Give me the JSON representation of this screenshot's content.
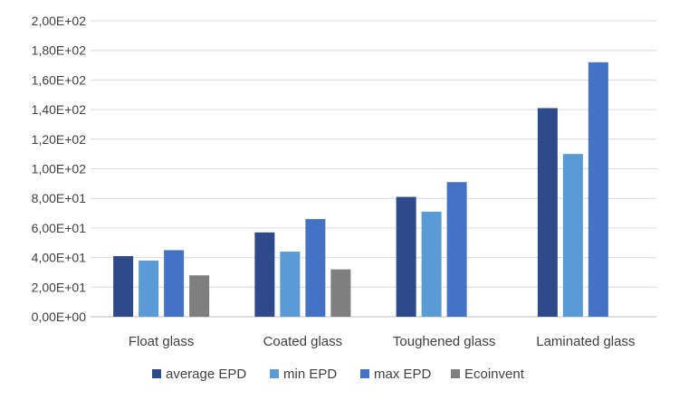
{
  "chart_data": {
    "type": "bar",
    "categories": [
      "Float glass",
      "Coated glass",
      "Toughened glass",
      "Laminated glass"
    ],
    "series": [
      {
        "name": "average EPD",
        "color": "#2e4a8b",
        "values": [
          41,
          57,
          81,
          141
        ]
      },
      {
        "name": "min EPD",
        "color": "#5b9bd5",
        "values": [
          38,
          44,
          71,
          110
        ]
      },
      {
        "name": "max EPD",
        "color": "#4472c4",
        "values": [
          45,
          66,
          91,
          172
        ]
      },
      {
        "name": "Ecoinvent",
        "color": "#7f7f7f",
        "values": [
          28,
          32,
          null,
          null
        ]
      }
    ],
    "yticks": [
      "0,00E+00",
      "2,00E+01",
      "4,00E+01",
      "6,00E+01",
      "8,00E+01",
      "1,00E+02",
      "1,20E+02",
      "1,40E+02",
      "1,60E+02",
      "1,80E+02",
      "2,00E+02"
    ],
    "ylim": [
      0,
      200
    ],
    "grid": true,
    "legend_position": "bottom"
  }
}
